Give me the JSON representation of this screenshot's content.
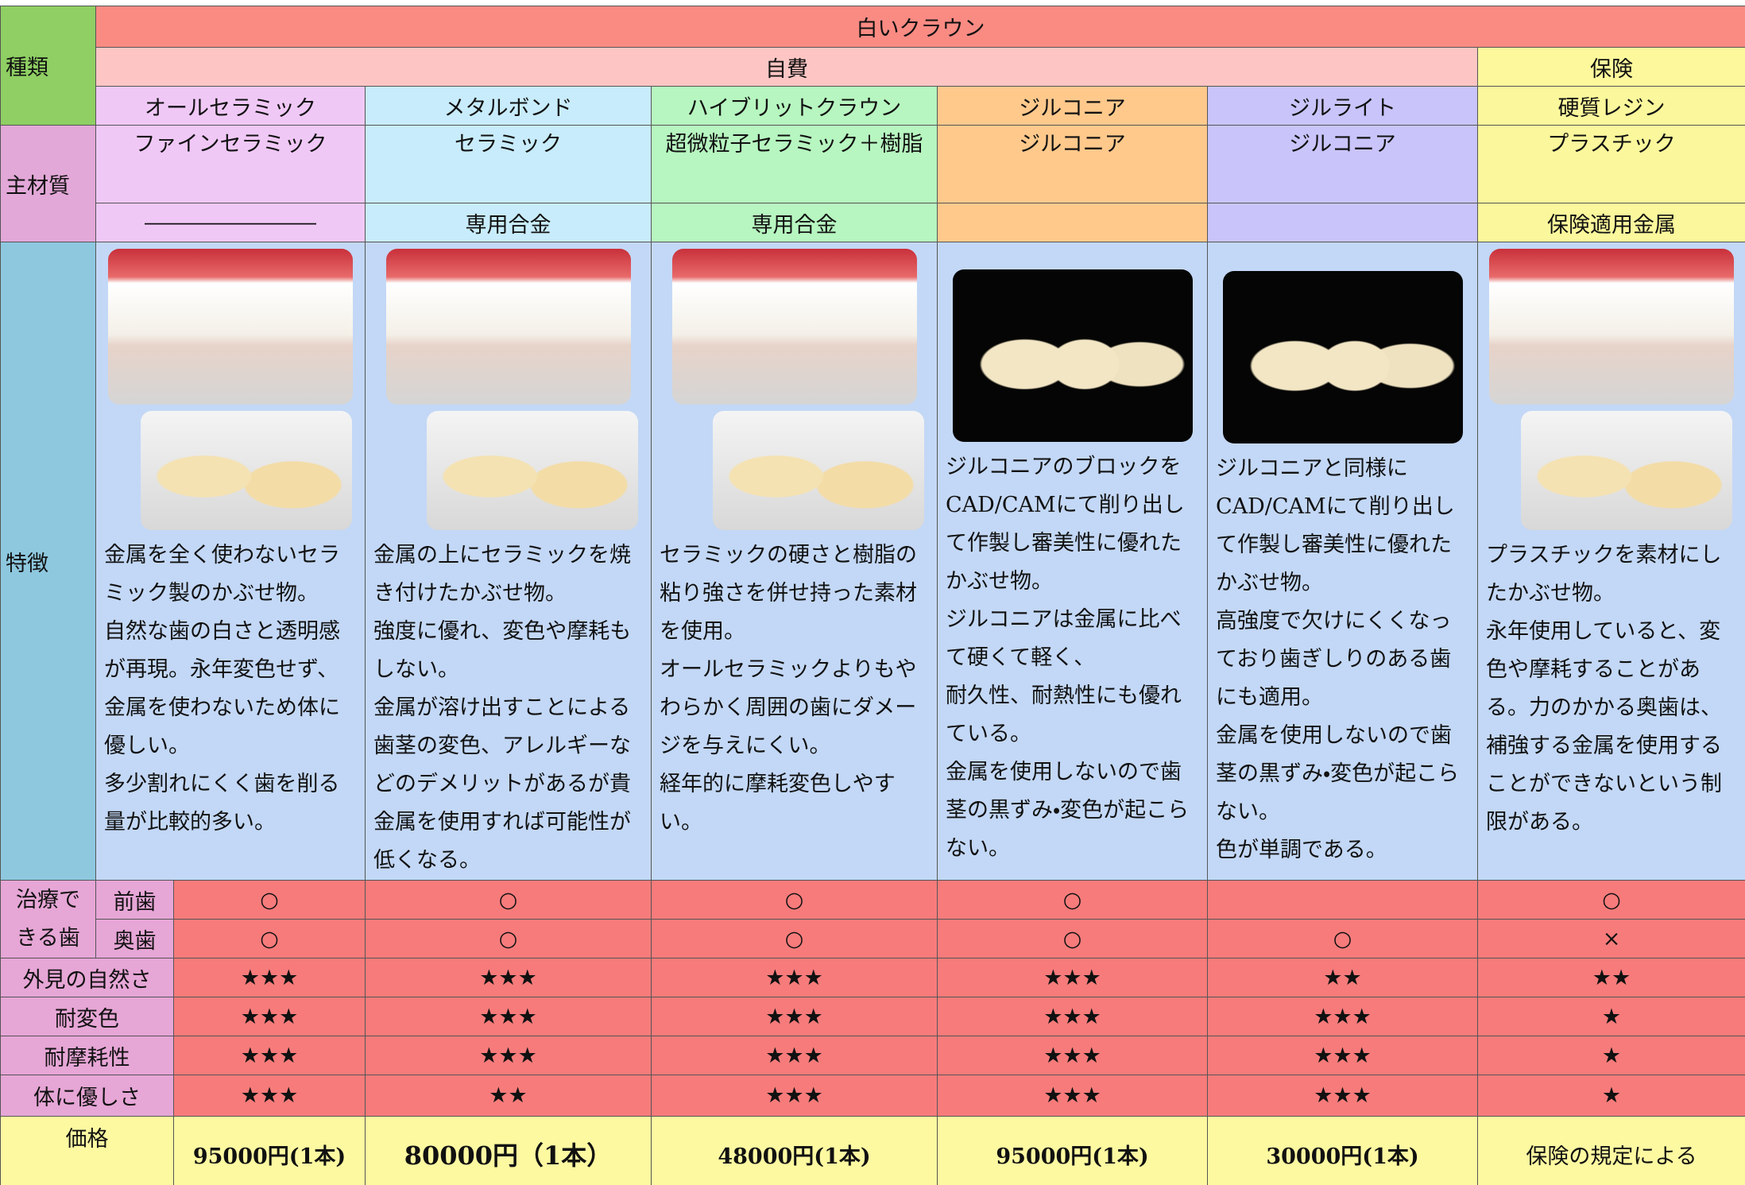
{
  "header": {
    "kind": "種類",
    "group": "白いクラウン",
    "self_pay": "自費",
    "insurance": "保険"
  },
  "row_labels": {
    "material": "主材質",
    "feature": "特徴",
    "treatable": "治療できる歯",
    "front": "前歯",
    "back": "奥歯",
    "appearance": "外見の自然さ",
    "discoloration": "耐変色",
    "wear": "耐摩耗性",
    "body": "体に優しさ",
    "price": "価格"
  },
  "columns": [
    {
      "name": "オールセラミック",
      "material": "ファインセラミック",
      "sub_material": "――――――――",
      "feature": [
        "金属を全く使わないセラミック製のかぶせ物。",
        "自然な歯の白さと透明感が再現。永年変色せず、金属を使わないため体に優しい。",
        "多少割れにくく歯を削る量が比較的多い。"
      ],
      "front": "○",
      "back": "○",
      "appearance": "★★★",
      "discoloration": "★★★",
      "wear": "★★★",
      "body": "★★★",
      "price": "95000円(1本)"
    },
    {
      "name": "メタルボンド",
      "material": "セラミック",
      "sub_material": "専用合金",
      "feature": [
        "金属の上にセラミックを焼き付けたかぶせ物。",
        "強度に優れ、変色や摩耗もしない。",
        "金属が溶け出すことによる歯茎の変色、アレルギーなどのデメリットがあるが貴金属を使用すれば可能性が低くなる。"
      ],
      "front": "○",
      "back": "○",
      "appearance": "★★★",
      "discoloration": "★★★",
      "wear": "★★★",
      "body": "★★",
      "price": "80000円（1本）"
    },
    {
      "name": "ハイブリットクラウン",
      "material": "超微粒子セラミック＋樹脂",
      "sub_material": "専用合金",
      "feature": [
        "セラミックの硬さと樹脂の粘り強さを併せ持った素材を使用。",
        "オールセラミックよりもやわらかく周囲の歯にダメージを与えにくい。",
        "経年的に摩耗変色しやすい。"
      ],
      "front": "○",
      "back": "○",
      "appearance": "★★★",
      "discoloration": "★★★",
      "wear": "★★★",
      "body": "★★★",
      "price": "48000円(1本)"
    },
    {
      "name": "ジルコニア",
      "material": "ジルコニア",
      "feature": [
        "ジルコニアのブロックをCAD/CAMにて削り出して作製し審美性に優れたかぶせ物。",
        "ジルコニアは金属に比べて硬くて軽く、",
        "耐久性、耐熱性にも優れている。",
        "金属を使用しないので歯茎の黒ずみ・変色が起こらない。"
      ],
      "front": "○",
      "back": "○",
      "appearance": "★★★",
      "discoloration": "★★★",
      "wear": "★★★",
      "body": "★★★",
      "price": "95000円(1本)"
    },
    {
      "name": "ジルライト",
      "material": "ジルコニア",
      "feature": [
        "ジルコニアと同様にCAD/CAMにて削り出して作製し審美性に優れたかぶせ物。",
        "高強度で欠けにくくなっており歯ぎしりのある歯にも適用。",
        "金属を使用しないので歯茎の黒ずみ・変色が起こらない。",
        "色が単調である。"
      ],
      "back": "○",
      "appearance": "★★",
      "discoloration": "★★★",
      "wear": "★★★",
      "body": "★★★",
      "price": "30000円(1本)"
    },
    {
      "name": "硬質レジン",
      "material": "プラスチック",
      "sub_material": "保険適用金属",
      "feature": [
        "プラスチックを素材にしたかぶせ物。",
        "永年使用していると、変色や摩耗することがある。力のかかる奥歯は、補強する金属を使用することができないという制限がある。"
      ],
      "front": "○",
      "back": "×",
      "appearance": "★★",
      "discoloration": "★",
      "wear": "★",
      "body": "★",
      "price": "保険の規定による"
    }
  ]
}
